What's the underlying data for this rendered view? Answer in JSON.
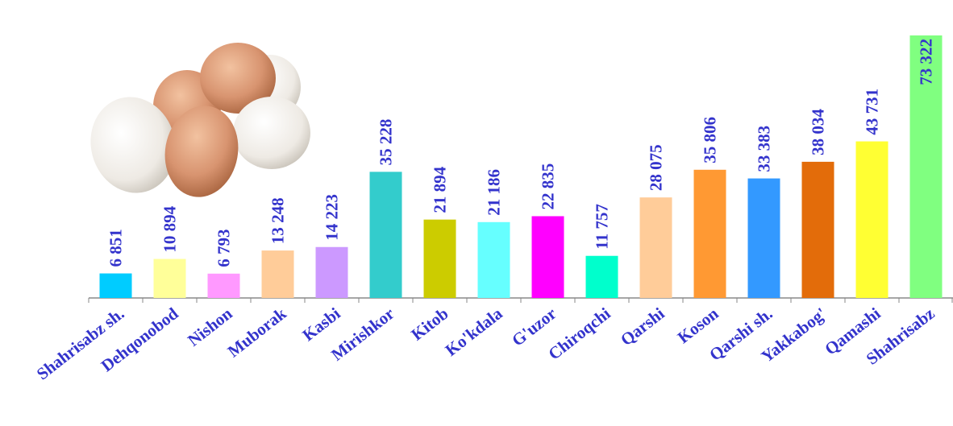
{
  "chart_data": {
    "type": "bar",
    "categories": [
      "Shahrisabz sh.",
      "Dehqonobod",
      "Nishon",
      "Muborak",
      "Kasbi",
      "Mirishkor",
      "Kitob",
      "Ko'kdala",
      "G'uzor",
      "Chiroqchi",
      "Qarshi",
      "Koson",
      "Qarshi sh.",
      "Yakkabog'",
      "Qamashi",
      "Shahrisabz"
    ],
    "values": [
      6851,
      10894,
      6793,
      13248,
      14223,
      35228,
      21894,
      21186,
      22835,
      11757,
      28075,
      35806,
      33383,
      38034,
      43731,
      73322
    ],
    "value_labels": [
      "6 851",
      "10 894",
      "6 793",
      "13 248",
      "14 223",
      "35 228",
      "21 894",
      "21 186",
      "22 835",
      "11 757",
      "28 075",
      "35 806",
      "33 383",
      "38 034",
      "43 731",
      "73 322"
    ],
    "colors": [
      "#00ccff",
      "#ffff99",
      "#ff99ff",
      "#ffcc99",
      "#cc99ff",
      "#33cccc",
      "#cccc00",
      "#66ffff",
      "#ff00ff",
      "#00ffcc",
      "#ffcc99",
      "#ff9933",
      "#3399ff",
      "#e36c0a",
      "#ffff33",
      "#80ff80"
    ]
  }
}
